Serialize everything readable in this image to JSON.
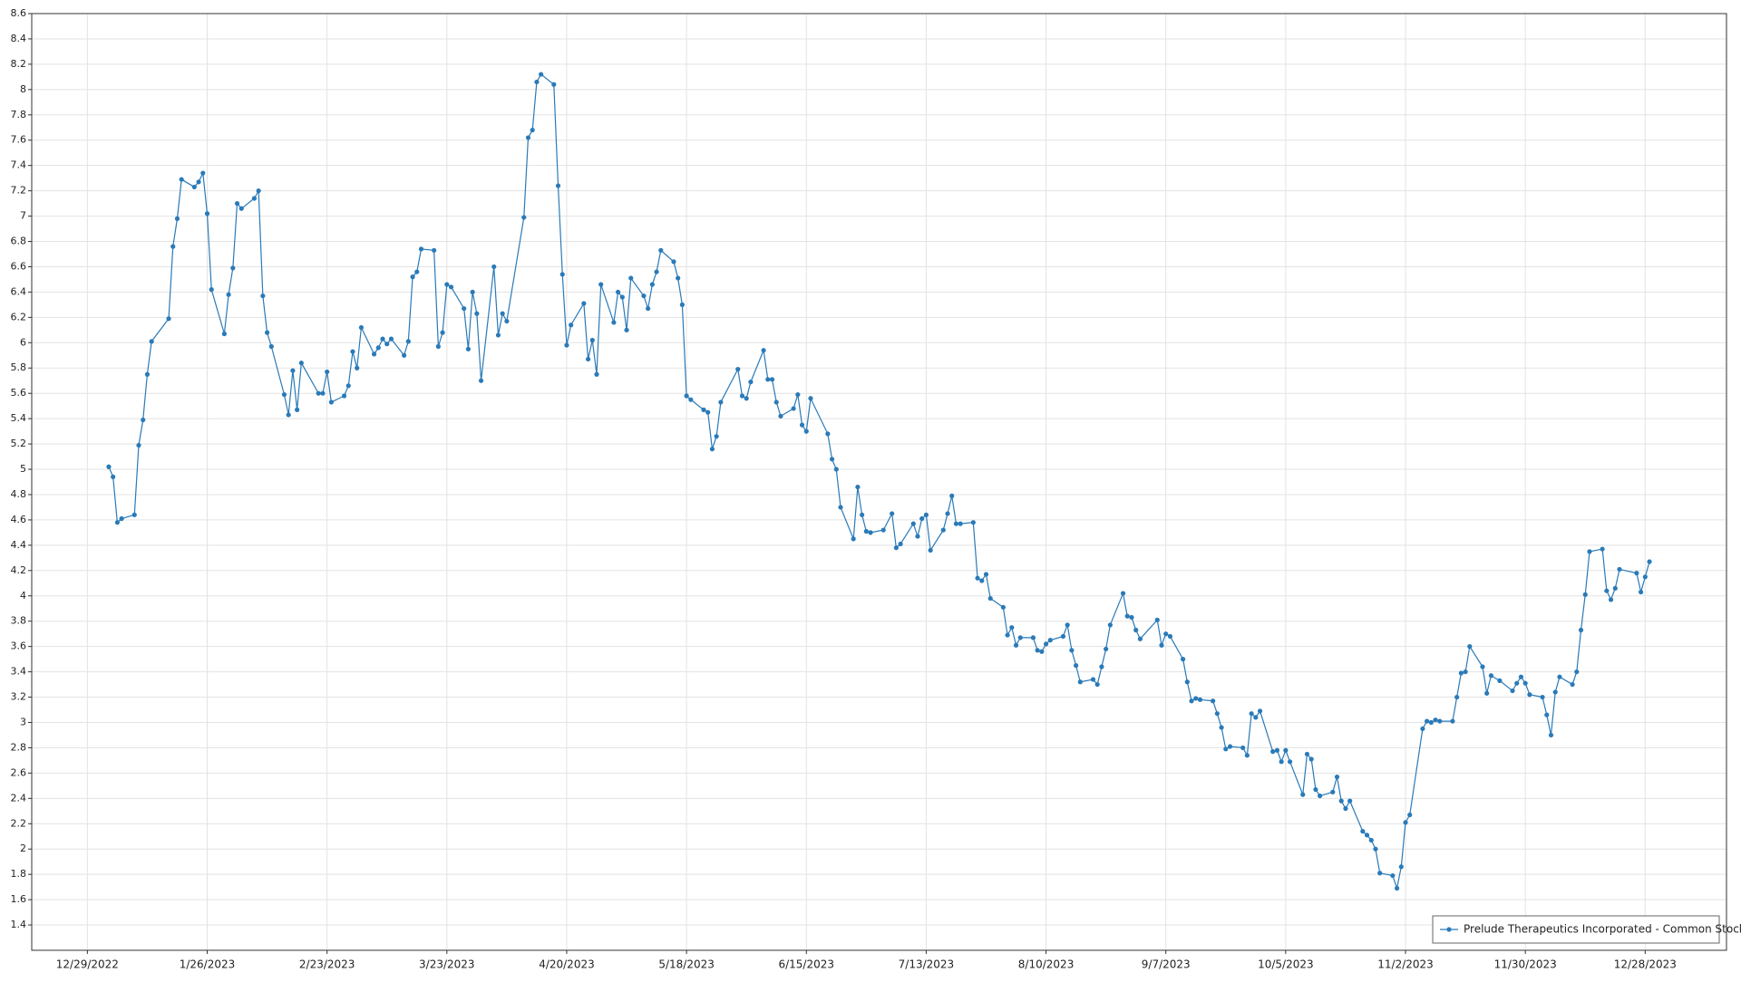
{
  "chart_data": {
    "type": "line",
    "x": [
      "1/3/2023",
      "1/4/2023",
      "1/5/2023",
      "1/6/2023",
      "1/9/2023",
      "1/10/2023",
      "1/11/2023",
      "1/12/2023",
      "1/13/2023",
      "1/17/2023",
      "1/18/2023",
      "1/19/2023",
      "1/20/2023",
      "1/23/2023",
      "1/24/2023",
      "1/25/2023",
      "1/26/2023",
      "1/27/2023",
      "1/30/2023",
      "1/31/2023",
      "2/1/2023",
      "2/2/2023",
      "2/3/2023",
      "2/6/2023",
      "2/7/2023",
      "2/8/2023",
      "2/9/2023",
      "2/10/2023",
      "2/13/2023",
      "2/14/2023",
      "2/15/2023",
      "2/16/2023",
      "2/17/2023",
      "2/21/2023",
      "2/22/2023",
      "2/23/2023",
      "2/24/2023",
      "2/27/2023",
      "2/28/2023",
      "3/1/2023",
      "3/2/2023",
      "3/3/2023",
      "3/6/2023",
      "3/7/2023",
      "3/8/2023",
      "3/9/2023",
      "3/10/2023",
      "3/13/2023",
      "3/14/2023",
      "3/15/2023",
      "3/16/2023",
      "3/17/2023",
      "3/20/2023",
      "3/21/2023",
      "3/22/2023",
      "3/23/2023",
      "3/24/2023",
      "3/27/2023",
      "3/28/2023",
      "3/29/2023",
      "3/30/2023",
      "3/31/2023",
      "4/3/2023",
      "4/4/2023",
      "4/5/2023",
      "4/6/2023",
      "4/10/2023",
      "4/11/2023",
      "4/12/2023",
      "4/13/2023",
      "4/14/2023",
      "4/17/2023",
      "4/18/2023",
      "4/19/2023",
      "4/20/2023",
      "4/21/2023",
      "4/24/2023",
      "4/25/2023",
      "4/26/2023",
      "4/27/2023",
      "4/28/2023",
      "5/1/2023",
      "5/2/2023",
      "5/3/2023",
      "5/4/2023",
      "5/5/2023",
      "5/8/2023",
      "5/9/2023",
      "5/10/2023",
      "5/11/2023",
      "5/12/2023",
      "5/15/2023",
      "5/16/2023",
      "5/17/2023",
      "5/18/2023",
      "5/19/2023",
      "5/22/2023",
      "5/23/2023",
      "5/24/2023",
      "5/25/2023",
      "5/26/2023",
      "5/30/2023",
      "5/31/2023",
      "6/1/2023",
      "6/2/2023",
      "6/5/2023",
      "6/6/2023",
      "6/7/2023",
      "6/8/2023",
      "6/9/2023",
      "6/12/2023",
      "6/13/2023",
      "6/14/2023",
      "6/15/2023",
      "6/16/2023",
      "6/20/2023",
      "6/21/2023",
      "6/22/2023",
      "6/23/2023",
      "6/26/2023",
      "6/27/2023",
      "6/28/2023",
      "6/29/2023",
      "6/30/2023",
      "7/3/2023",
      "7/5/2023",
      "7/6/2023",
      "7/7/2023",
      "7/10/2023",
      "7/11/2023",
      "7/12/2023",
      "7/13/2023",
      "7/14/2023",
      "7/17/2023",
      "7/18/2023",
      "7/19/2023",
      "7/20/2023",
      "7/21/2023",
      "7/24/2023",
      "7/25/2023",
      "7/26/2023",
      "7/27/2023",
      "7/28/2023",
      "7/31/2023",
      "8/1/2023",
      "8/2/2023",
      "8/3/2023",
      "8/4/2023",
      "8/7/2023",
      "8/8/2023",
      "8/9/2023",
      "8/10/2023",
      "8/11/2023",
      "8/14/2023",
      "8/15/2023",
      "8/16/2023",
      "8/17/2023",
      "8/18/2023",
      "8/21/2023",
      "8/22/2023",
      "8/23/2023",
      "8/24/2023",
      "8/25/2023",
      "8/28/2023",
      "8/29/2023",
      "8/30/2023",
      "8/31/2023",
      "9/1/2023",
      "9/5/2023",
      "9/6/2023",
      "9/7/2023",
      "9/8/2023",
      "9/11/2023",
      "9/12/2023",
      "9/13/2023",
      "9/14/2023",
      "9/15/2023",
      "9/18/2023",
      "9/19/2023",
      "9/20/2023",
      "9/21/2023",
      "9/22/2023",
      "9/25/2023",
      "9/26/2023",
      "9/27/2023",
      "9/28/2023",
      "9/29/2023",
      "10/2/2023",
      "10/3/2023",
      "10/4/2023",
      "10/5/2023",
      "10/6/2023",
      "10/9/2023",
      "10/10/2023",
      "10/11/2023",
      "10/12/2023",
      "10/13/2023",
      "10/16/2023",
      "10/17/2023",
      "10/18/2023",
      "10/19/2023",
      "10/20/2023",
      "10/23/2023",
      "10/24/2023",
      "10/25/2023",
      "10/26/2023",
      "10/27/2023",
      "10/30/2023",
      "10/31/2023",
      "11/1/2023",
      "11/2/2023",
      "11/3/2023",
      "11/6/2023",
      "11/7/2023",
      "11/8/2023",
      "11/9/2023",
      "11/10/2023",
      "11/13/2023",
      "11/14/2023",
      "11/15/2023",
      "11/16/2023",
      "11/17/2023",
      "11/20/2023",
      "11/21/2023",
      "11/22/2023",
      "11/24/2023",
      "11/27/2023",
      "11/28/2023",
      "11/29/2023",
      "11/30/2023",
      "12/1/2023",
      "12/4/2023",
      "12/5/2023",
      "12/6/2023",
      "12/7/2023",
      "12/8/2023",
      "12/11/2023",
      "12/12/2023",
      "12/13/2023",
      "12/14/2023",
      "12/15/2023",
      "12/18/2023",
      "12/19/2023",
      "12/20/2023",
      "12/21/2023",
      "12/22/2023",
      "12/26/2023",
      "12/27/2023",
      "12/28/2023",
      "12/29/2023"
    ],
    "series": [
      {
        "name": "Prelude Therapeutics Incorporated - Common Stock",
        "color": "#2a7ab8",
        "values": [
          5.02,
          4.94,
          4.58,
          4.61,
          4.64,
          5.19,
          5.39,
          5.75,
          6.01,
          6.19,
          6.76,
          6.98,
          7.29,
          7.23,
          7.27,
          7.34,
          7.02,
          6.42,
          6.07,
          6.38,
          6.59,
          7.1,
          7.06,
          7.14,
          7.2,
          6.37,
          6.08,
          5.97,
          5.59,
          5.43,
          5.78,
          5.47,
          5.84,
          5.6,
          5.6,
          5.77,
          5.53,
          5.58,
          5.66,
          5.93,
          5.8,
          6.12,
          5.91,
          5.96,
          6.03,
          5.99,
          6.03,
          5.9,
          6.01,
          6.52,
          6.56,
          6.74,
          6.73,
          5.97,
          6.08,
          6.46,
          6.44,
          6.27,
          5.95,
          6.4,
          6.23,
          5.7,
          6.6,
          6.06,
          6.23,
          6.17,
          6.99,
          7.62,
          7.68,
          8.06,
          8.12,
          8.04,
          7.24,
          6.54,
          5.98,
          6.14,
          6.31,
          5.87,
          6.02,
          5.75,
          6.46,
          6.16,
          6.4,
          6.36,
          6.1,
          6.51,
          6.37,
          6.27,
          6.46,
          6.56,
          6.73,
          6.64,
          6.51,
          6.3,
          5.58,
          5.55,
          5.47,
          5.45,
          5.16,
          5.26,
          5.53,
          5.79,
          5.58,
          5.56,
          5.69,
          5.94,
          5.71,
          5.71,
          5.53,
          5.42,
          5.48,
          5.59,
          5.35,
          5.3,
          5.56,
          5.28,
          5.08,
          5.0,
          4.7,
          4.45,
          4.86,
          4.64,
          4.51,
          4.5,
          4.52,
          4.65,
          4.38,
          4.41,
          4.57,
          4.47,
          4.61,
          4.64,
          4.36,
          4.52,
          4.65,
          4.79,
          4.57,
          4.57,
          4.58,
          4.14,
          4.12,
          4.17,
          3.98,
          3.91,
          3.69,
          3.75,
          3.61,
          3.67,
          3.67,
          3.57,
          3.56,
          3.62,
          3.65,
          3.68,
          3.77,
          3.57,
          3.45,
          3.32,
          3.34,
          3.3,
          3.44,
          3.58,
          3.77,
          4.02,
          3.84,
          3.83,
          3.73,
          3.66,
          3.81,
          3.61,
          3.7,
          3.68,
          3.5,
          3.32,
          3.17,
          3.19,
          3.18,
          3.17,
          3.07,
          2.96,
          2.79,
          2.81,
          2.8,
          2.74,
          3.07,
          3.04,
          3.09,
          2.77,
          2.78,
          2.69,
          2.78,
          2.69,
          2.43,
          2.75,
          2.71,
          2.47,
          2.42,
          2.45,
          2.57,
          2.38,
          2.32,
          2.38,
          2.14,
          2.11,
          2.07,
          2.0,
          1.81,
          1.79,
          1.69,
          1.86,
          2.21,
          2.27,
          2.95,
          3.01,
          3.0,
          3.02,
          3.01,
          3.01,
          3.2,
          3.39,
          3.4,
          3.6,
          3.44,
          3.23,
          3.37,
          3.33,
          3.25,
          3.31,
          3.36,
          3.31,
          3.22,
          3.2,
          3.06,
          2.9,
          3.24,
          3.36,
          3.3,
          3.4,
          3.73,
          4.01,
          4.35,
          4.37,
          4.04,
          3.97,
          4.06,
          4.21,
          4.18,
          4.03,
          4.15,
          4.27
        ]
      }
    ],
    "xlim": [
      "12/16/2022",
      "1/16/2024"
    ],
    "xticks": [
      "12/29/2022",
      "1/26/2023",
      "2/23/2023",
      "3/23/2023",
      "4/20/2023",
      "5/18/2023",
      "6/15/2023",
      "7/13/2023",
      "8/10/2023",
      "9/7/2023",
      "10/5/2023",
      "11/2/2023",
      "11/30/2023",
      "12/28/2023"
    ],
    "ylim": [
      1.2,
      8.6
    ],
    "yticks": [
      1.4,
      1.6,
      1.8,
      2,
      2.2,
      2.4,
      2.6,
      2.8,
      3,
      3.2,
      3.4,
      3.6,
      3.8,
      4,
      4.2,
      4.4,
      4.6,
      4.8,
      5,
      5.2,
      5.4,
      5.6,
      5.8,
      6,
      6.2,
      6.4,
      6.6,
      6.8,
      7,
      7.2,
      7.4,
      7.6,
      7.8,
      8,
      8.2,
      8.4,
      8.6
    ],
    "grid": true,
    "legend": "lower right"
  }
}
